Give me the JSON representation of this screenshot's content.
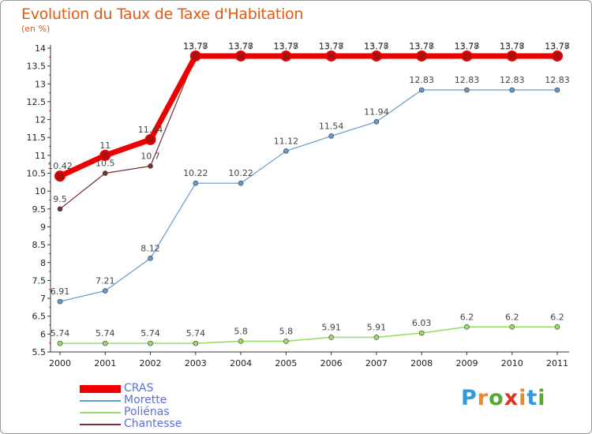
{
  "header": {
    "title": "Evolution du Taux de Taxe d'Habitation",
    "unit": "(en %)"
  },
  "chart_data": {
    "type": "line",
    "x": [
      "2000",
      "2001",
      "2002",
      "2003",
      "2004",
      "2005",
      "2006",
      "2007",
      "2008",
      "2009",
      "2010",
      "2011"
    ],
    "ylim": [
      5.5,
      14
    ],
    "yticks": [
      "5.5",
      "6",
      "6.5",
      "7",
      "7.5",
      "8",
      "8.5",
      "9",
      "9.5",
      "10",
      "10.5",
      "11",
      "11.5",
      "12",
      "12.5",
      "13",
      "13.5",
      "14"
    ],
    "grid": false,
    "legend_position": "bottom-left",
    "series": [
      {
        "name": "CRAS",
        "color": "#ee0000",
        "values": [
          10.42,
          11,
          11.44,
          13.78,
          13.78,
          13.78,
          13.78,
          13.78,
          13.78,
          13.78,
          13.78,
          13.78
        ],
        "labels": [
          "10.42",
          "11",
          "11.44",
          "13.78",
          "13.78",
          "13.78",
          "13.78",
          "13.78",
          "13.78",
          "13.78",
          "13.78",
          "13.78"
        ]
      },
      {
        "name": "Morette",
        "color": "#6699cc",
        "values": [
          6.91,
          7.21,
          8.12,
          10.22,
          10.22,
          11.12,
          11.54,
          11.94,
          12.83,
          12.83,
          12.83,
          12.83
        ],
        "labels": [
          "6.91",
          "7.21",
          "8.12",
          "10.22",
          "10.22",
          "11.12",
          "11.54",
          "11.94",
          "12.83",
          "12.83",
          "12.83",
          "12.83"
        ]
      },
      {
        "name": "Poliénas",
        "color": "#99dd66",
        "values": [
          5.74,
          5.74,
          5.74,
          5.74,
          5.8,
          5.8,
          5.91,
          5.91,
          6.03,
          6.2,
          6.2,
          6.2
        ],
        "labels": [
          "5.74",
          "5.74",
          "5.74",
          "5.74",
          "5.8",
          "5.8",
          "5.91",
          "5.91",
          "6.03",
          "6.2",
          "6.2",
          "6.2"
        ]
      },
      {
        "name": "Chantesse",
        "color": "#7a3030",
        "values": [
          9.5,
          10.5,
          10.7,
          13.77,
          13.77,
          13.77,
          13.77,
          13.77,
          13.77,
          13.77,
          13.77,
          13.77
        ],
        "labels": [
          "9.5",
          "10.5",
          "10.7",
          "13.77",
          "13.77",
          "13.77",
          "13.77",
          "13.77",
          "13.77",
          "13.77",
          "13.77",
          "13.77"
        ]
      }
    ]
  },
  "logo": {
    "letters": [
      "P",
      "r",
      "o",
      "x",
      "i",
      "t",
      "i"
    ],
    "colors": [
      "#3399dd",
      "#ee8822",
      "#55aa33",
      "#dd3322",
      "#ee8822",
      "#3399dd",
      "#55aa33"
    ]
  }
}
